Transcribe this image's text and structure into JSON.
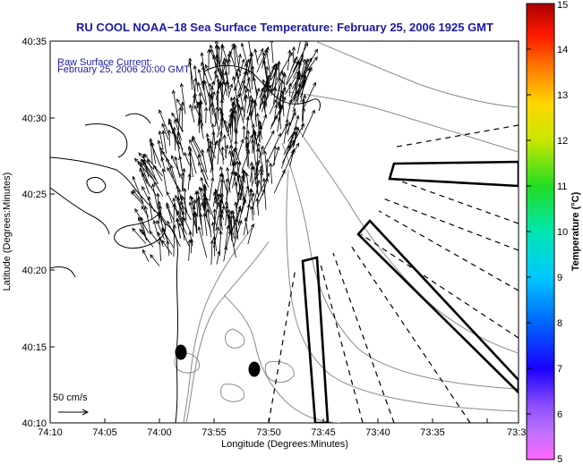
{
  "map": {
    "title": "RU COOL  NOAA−18  Sea Surface Temperature:  February 25, 2006 1925 GMT",
    "current_label": "Raw Surface Current:",
    "current_time": "February 25, 2006 20:00 GMT",
    "xlabel": "Longitude (Degrees:Minutes)",
    "ylabel": "Latitude (Degrees:Minutes)",
    "x_ticks": [
      "74:10",
      "74:05",
      "74:00",
      "73:55",
      "73:50",
      "73:45",
      "73:40",
      "73:35",
      "73:3"
    ],
    "y_ticks": [
      "40:35",
      "40:30",
      "40:25",
      "40:20",
      "40:15",
      "40:10"
    ],
    "scale_label": "50 cm/s",
    "colorbar": {
      "label": "Temperature (°C)",
      "ticks": [
        "15",
        "14",
        "13",
        "12",
        "11",
        "10",
        "9",
        "8",
        "7",
        "6",
        "5"
      ],
      "min": 5,
      "max": 15
    },
    "colors": {
      "title": "#1a1aa6",
      "land_outline": "#000000",
      "bathymetry": "#8a8a8a",
      "vectors": "#000000"
    }
  }
}
